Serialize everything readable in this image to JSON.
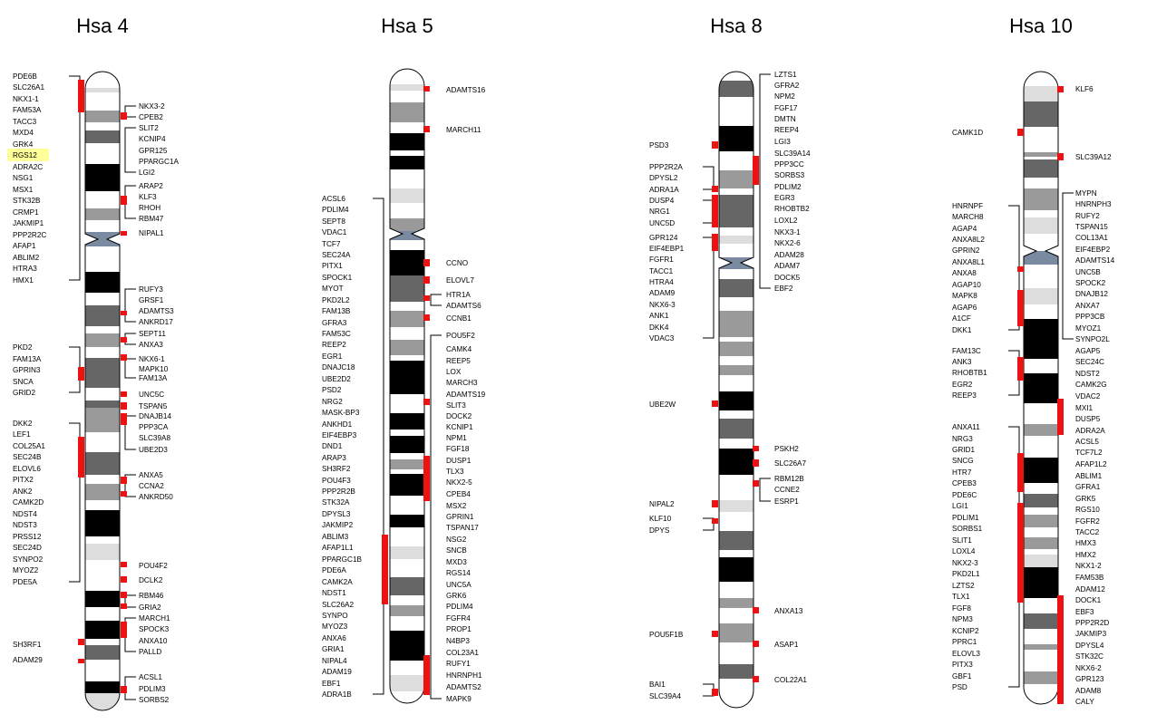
{
  "highlight_color": "#ffff99",
  "mark_color": "#ee1111",
  "chromosomes": [
    {
      "title": "Hsa 4",
      "highlighted_gene": "RGS12",
      "genes_left": [
        "PDE6B",
        "SLC26A1",
        "NKX1-1",
        "FAM53A",
        "TACC3",
        "MXD4",
        "GRK4",
        "RGS12",
        "ADRA2C",
        "NSG1",
        "MSX1",
        "STK32B",
        "CRMP1",
        "JAKMIP1",
        "PPP2R2C",
        "AFAP1",
        "ABLIM2",
        "HTRA3",
        "HMX1",
        "PKD2",
        "FAM13A",
        "GPRIN3",
        "SNCA",
        "GRID2",
        "DKK2",
        "LEF1",
        "COL25A1",
        "SEC24B",
        "ELOVL6",
        "PITX2",
        "ANK2",
        "CAMK2D",
        "NDST4",
        "NDST3",
        "PRSS12",
        "SEC24D",
        "SYNPO2",
        "MYOZ2",
        "PDE5A",
        "SH3RF1",
        "ADAM29"
      ],
      "genes_right": [
        "NKX3-2",
        "CPEB2",
        "SLIT2",
        "KCNIP4",
        "GPR125",
        "PPARGC1A",
        "LGI2",
        "ARAP2",
        "KLF3",
        "RHOH",
        "RBM47",
        "NIPAL1",
        "RUFY3",
        "GRSF1",
        "ADAMTS3",
        "ANKRD17",
        "SEPT11",
        "ANXA3",
        "NKX6-1",
        "MAPK10",
        "FAM13A",
        "UNC5C",
        "TSPAN5",
        "DNAJB14",
        "PPP3CA",
        "SLC39A8",
        "UBE2D3",
        "ANXA5",
        "CCNA2",
        "ANKRD50",
        "POU4F2",
        "DCLK2",
        "RBM46",
        "GRIA2",
        "MARCH1",
        "SPOCK3",
        "ANXA10",
        "PALLD",
        "ACSL1",
        "PDLIM3",
        "SORBS2"
      ]
    },
    {
      "title": "Hsa 5",
      "genes_left": [
        "ACSL6",
        "PDLIM4",
        "SEPT8",
        "VDAC1",
        "TCF7",
        "SEC24A",
        "PITX1",
        "SPOCK1",
        "MYOT",
        "PKD2L2",
        "FAM13B",
        "GFRA3",
        "FAM53C",
        "REEP2",
        "EGR1",
        "DNAJC18",
        "UBE2D2",
        "PSD2",
        "NRG2",
        "MASK-BP3",
        "ANKHD1",
        "EIF4EBP3",
        "DND1",
        "ARAP3",
        "SH3RF2",
        "POU4F3",
        "PPP2R2B",
        "STK32A",
        "DPYSL3",
        "JAKMIP2",
        "ABLIM3",
        "AFAP1L1",
        "PPARGC1B",
        "PDE6A",
        "CAMK2A",
        "NDST1",
        "SLC26A2",
        "SYNPO",
        "MYOZ3",
        "ANXA6",
        "GRIA1",
        "NIPAL4",
        "ADAM19",
        "EBF1",
        "ADRA1B"
      ],
      "genes_right": [
        "ADAMTS16",
        "MARCH11",
        "CCNO",
        "ELOVL7",
        "HTR1A",
        "ADAMTS6",
        "CCNB1",
        "POU5F2",
        "CAMK4",
        "REEP5",
        "LOX",
        "MARCH3",
        "ADAMTS19",
        "SLIT3",
        "DOCK2",
        "KCNIP1",
        "NPM1",
        "FGF18",
        "DUSP1",
        "TLX3",
        "NKX2-5",
        "CPEB4",
        "MSX2",
        "GPRIN1",
        "TSPAN17",
        "NSG2",
        "SNCB",
        "MXD3",
        "RGS14",
        "UNC5A",
        "GRK6",
        "PDLIM4",
        "FGFR4",
        "PROP1",
        "N4BP3",
        "COL23A1",
        "RUFY1",
        "HNRNPH1",
        "ADAMTS2",
        "MAPK9"
      ]
    },
    {
      "title": "Hsa 8",
      "genes_left": [
        "PSD3",
        "PPP2R2A",
        "DPYSL2",
        "ADRA1A",
        "DUSP4",
        "NRG1",
        "UNC5D",
        "GPR124",
        "EIF4EBP1",
        "FGFR1",
        "TACC1",
        "HTRA4",
        "ADAM9",
        "NKX6-3",
        "ANK1",
        "DKK4",
        "VDAC3",
        "UBE2W",
        "NIPAL2",
        "KLF10",
        "DPYS",
        "POU5F1B",
        "BAI1",
        "SLC39A4"
      ],
      "genes_right": [
        "LZTS1",
        "GFRA2",
        "NPM2",
        "FGF17",
        "DMTN",
        "REEP4",
        "LGI3",
        "SLC39A14",
        "PPP3CC",
        "SORBS3",
        "PDLIM2",
        "EGR3",
        "RHOBTB2",
        "LOXL2",
        "NKX3-1",
        "NKX2-6",
        "ADAM28",
        "ADAM7",
        "DOCK5",
        "EBF2",
        "PSKH2",
        "SLC26A7",
        "RBM12B",
        "CCNE2",
        "ESRP1",
        "ANXA13",
        "ASAP1",
        "COL22A1"
      ]
    },
    {
      "title": "Hsa 10",
      "genes_left": [
        "CAMK1D",
        "HNRNPF",
        "MARCH8",
        "AGAP4",
        "ANXA8L2",
        "GPRIN2",
        "ANXA8L1",
        "ANXA8",
        "AGAP10",
        "MAPK8",
        "AGAP6",
        "A1CF",
        "DKK1",
        "FAM13C",
        "ANK3",
        "RHOBTB1",
        "EGR2",
        "REEP3",
        "ANXA11",
        "NRG3",
        "GRID1",
        "SNCG",
        "HTR7",
        "CPEB3",
        "PDE6C",
        "LGI1",
        "PDLIM1",
        "SORBS1",
        "SLIT1",
        "LOXL4",
        "NKX2-3",
        "PKD2L1",
        "LZTS2",
        "TLX1",
        "FGF8",
        "NPM3",
        "KCNIP2",
        "PPRC1",
        "ELOVL3",
        "PITX3",
        "GBF1",
        "PSD"
      ],
      "genes_right": [
        "KLF6",
        "SLC39A12",
        "MYPN",
        "HNRNPH3",
        "RUFY2",
        "TSPAN15",
        "COL13A1",
        "EIF4EBP2",
        "ADAMTS14",
        "UNC5B",
        "SPOCK2",
        "DNAJB12",
        "ANXA7",
        "PPP3CB",
        "MYOZ1",
        "SYNPO2L",
        "AGAP5",
        "SEC24C",
        "NDST2",
        "CAMK2G",
        "VDAC2",
        "MXI1",
        "DUSP5",
        "ADRA2A",
        "ACSL5",
        "TCF7L2",
        "AFAP1L2",
        "ABLIM1",
        "GFRA1",
        "GRK5",
        "RGS10",
        "FGFR2",
        "TACC2",
        "HMX3",
        "HMX2",
        "NKX1-2",
        "FAM53B",
        "ADAM12",
        "DOCK1",
        "EBF3",
        "PPP2R2D",
        "JAKMIP3",
        "DPYSL4",
        "STK32C",
        "NKX6-2",
        "GPR123",
        "ADAM8",
        "CALY"
      ]
    }
  ]
}
